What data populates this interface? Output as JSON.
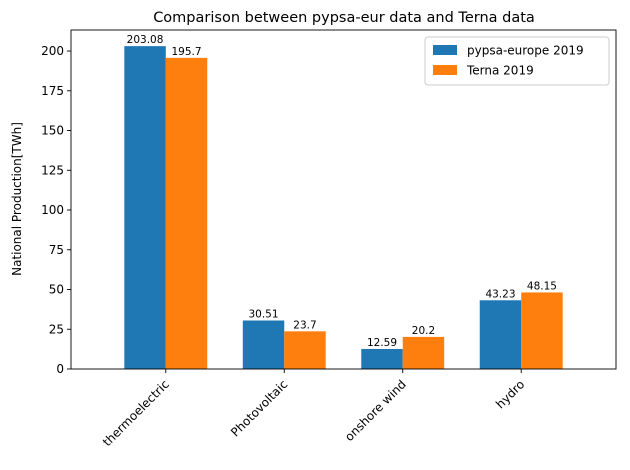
{
  "chart_data": {
    "type": "bar",
    "title": "Comparison between pypsa-eur data and Terna data",
    "xlabel": "",
    "ylabel": "National Production[TWh]",
    "categories": [
      "thermoelectric",
      "Photovoltaic",
      "onshore wind",
      "hydro"
    ],
    "series": [
      {
        "name": "pypsa-europe 2019",
        "color": "#1f77b4",
        "values": [
          203.08,
          30.51,
          12.59,
          43.23
        ],
        "labels": [
          "203.08",
          "30.51",
          "12.59",
          "43.23"
        ]
      },
      {
        "name": "Terna 2019",
        "color": "#ff7f0e",
        "values": [
          195.7,
          23.7,
          20.2,
          48.15
        ],
        "labels": [
          "195.7",
          "23.7",
          "20.2",
          "48.15"
        ]
      }
    ],
    "ylim": [
      0,
      213.23
    ],
    "yticks": [
      0,
      25,
      50,
      75,
      100,
      125,
      150,
      175,
      200
    ],
    "ytick_labels": [
      "0",
      "25",
      "50",
      "75",
      "100",
      "125",
      "150",
      "175",
      "200"
    ],
    "grid": false,
    "legend_position": "top-right",
    "xtick_rotation_deg": 45
  }
}
